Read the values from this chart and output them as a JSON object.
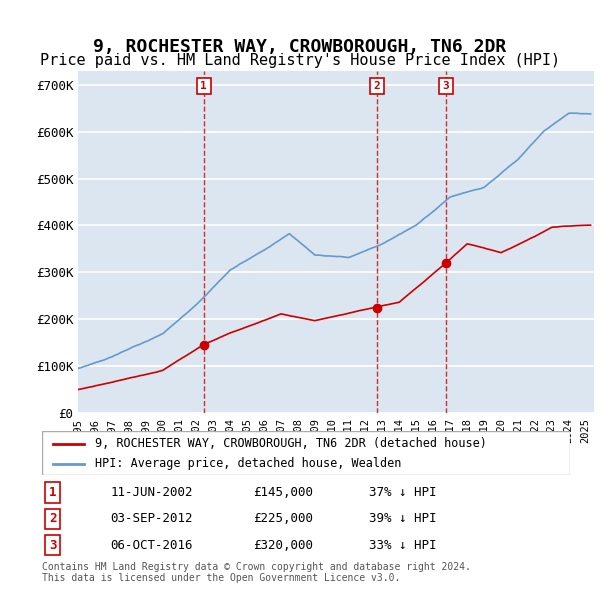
{
  "title": "9, ROCHESTER WAY, CROWBOROUGH, TN6 2DR",
  "subtitle": "Price paid vs. HM Land Registry's House Price Index (HPI)",
  "title_fontsize": 13,
  "subtitle_fontsize": 11,
  "ylabel": "",
  "ylim": [
    0,
    730000
  ],
  "yticks": [
    0,
    100000,
    200000,
    300000,
    400000,
    500000,
    600000,
    700000
  ],
  "ytick_labels": [
    "£0",
    "£100K",
    "£200K",
    "£300K",
    "£400K",
    "£500K",
    "£600K",
    "£700K"
  ],
  "xlim_start": 1995.0,
  "xlim_end": 2025.5,
  "background_color": "#dce6f1",
  "plot_bg_color": "#dce6f1",
  "grid_color": "#ffffff",
  "red_line_color": "#cc0000",
  "blue_line_color": "#6699cc",
  "sale_marker_color": "#cc0000",
  "transaction_line_color": "#cc0000",
  "legend_box_color": "#ffffff",
  "transactions": [
    {
      "id": 1,
      "date_year": 2002.44,
      "price": 145000,
      "label": "1",
      "date_str": "11-JUN-2002",
      "pct": "37% ↓ HPI"
    },
    {
      "id": 2,
      "date_year": 2012.67,
      "price": 225000,
      "label": "2",
      "date_str": "03-SEP-2012",
      "pct": "39% ↓ HPI"
    },
    {
      "id": 3,
      "date_year": 2016.76,
      "price": 320000,
      "label": "3",
      "date_str": "06-OCT-2016",
      "pct": "33% ↓ HPI"
    }
  ],
  "footer_line1": "Contains HM Land Registry data © Crown copyright and database right 2024.",
  "footer_line2": "This data is licensed under the Open Government Licence v3.0.",
  "legend_label_red": "9, ROCHESTER WAY, CROWBOROUGH, TN6 2DR (detached house)",
  "legend_label_blue": "HPI: Average price, detached house, Wealden"
}
